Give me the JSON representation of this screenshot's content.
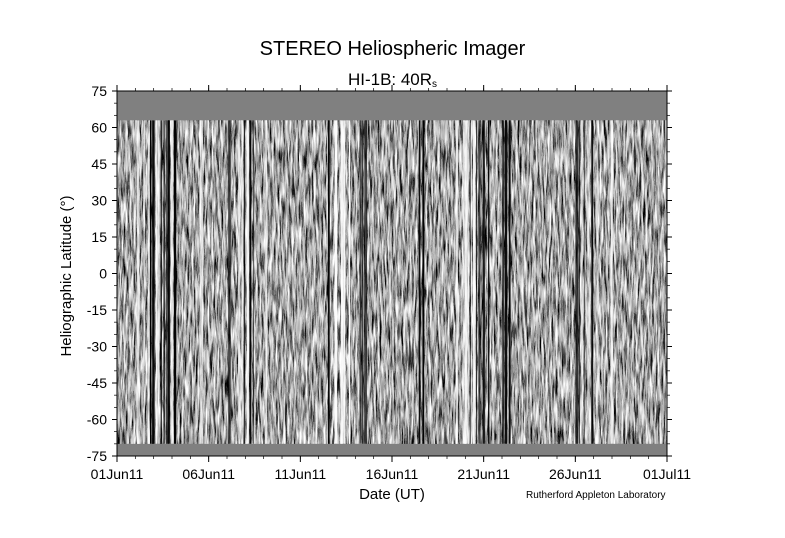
{
  "chart_data": {
    "type": "heatmap",
    "title": "STEREO Heliospheric Imager",
    "subtitle_main": "HI-1B: 40R",
    "subtitle_sub": "s",
    "xlabel": "Date (UT)",
    "ylabel": "Heliographic Latitude (°)",
    "x_ticks": [
      "01Jun11",
      "06Jun11",
      "11Jun11",
      "16Jun11",
      "21Jun11",
      "26Jun11",
      "01Jul11"
    ],
    "y_ticks": [
      75,
      60,
      45,
      30,
      15,
      0,
      -15,
      -30,
      -45,
      -60,
      -75
    ],
    "ylim": [
      -75,
      75
    ],
    "xlim": [
      "01Jun11",
      "01Jul11"
    ],
    "data_latitude_range": [
      -70,
      63
    ],
    "colormap": "grayscale running-difference",
    "masked_color": "#808080",
    "credit": "Rutherford Appleton Laboratory"
  }
}
